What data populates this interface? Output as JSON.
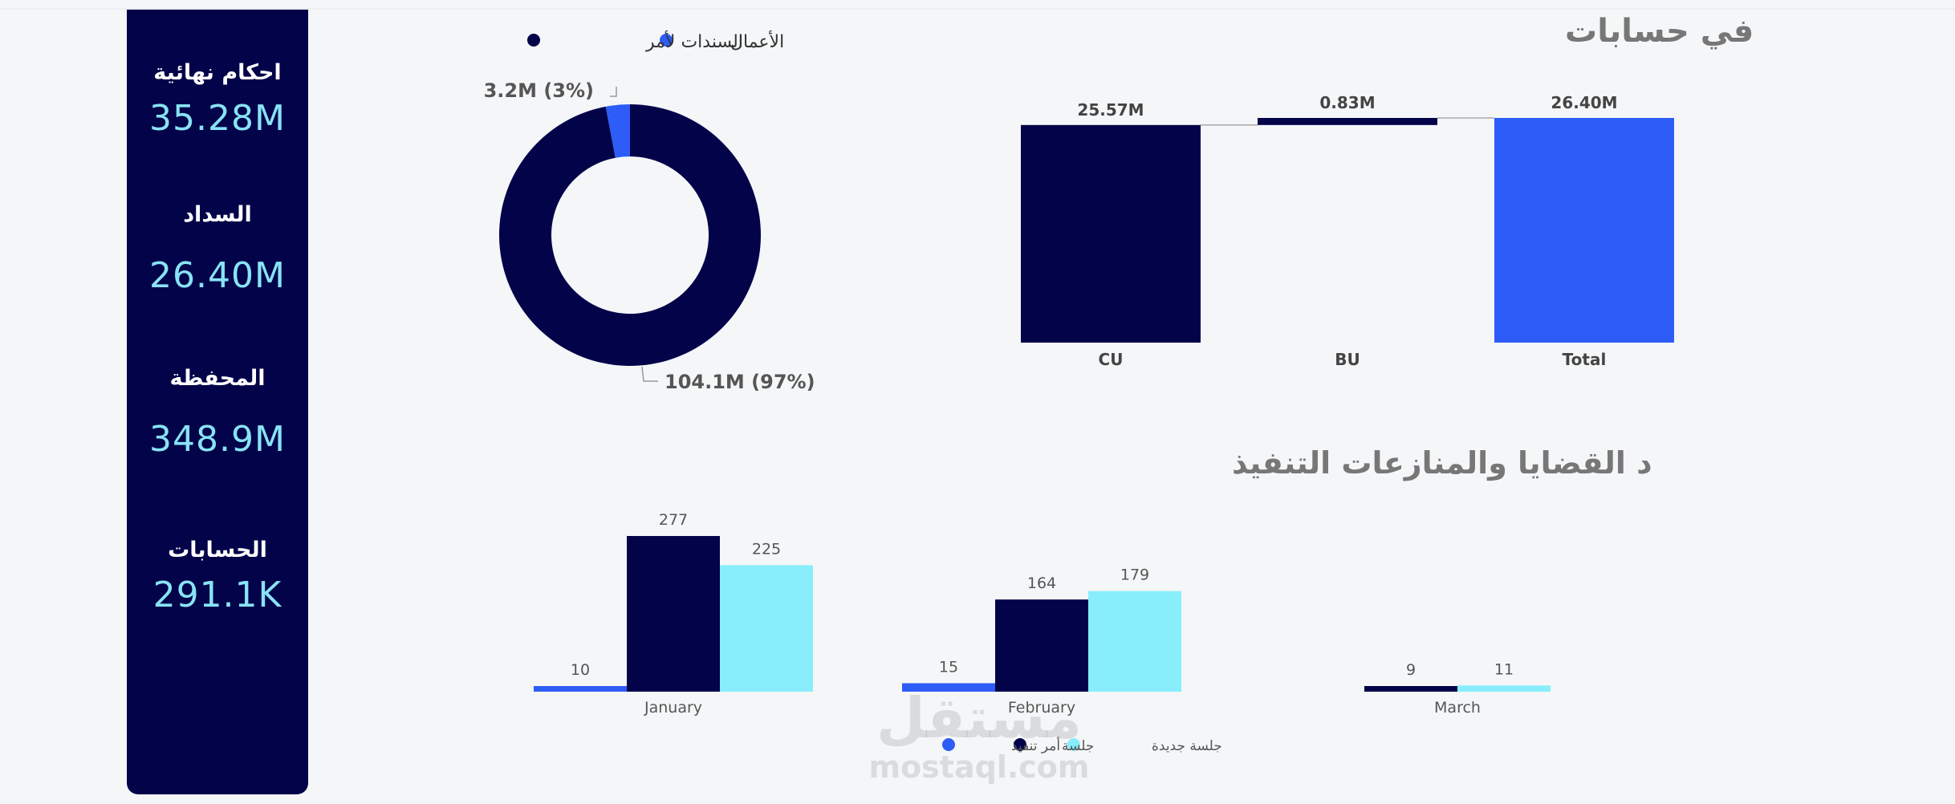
{
  "kpis": [
    {
      "label": "احكام نهائية",
      "value": "35.28M"
    },
    {
      "label": "السداد",
      "value": "26.40M"
    },
    {
      "label": "المحفظة",
      "value": "348.9M"
    },
    {
      "label": "الحسابات",
      "value": "291.1K"
    }
  ],
  "colors": {
    "navy": "#03034a",
    "blue": "#2d5cf6",
    "cyan": "#88eefb",
    "kpi_value": "#88e3f5",
    "title_gray": "#777777"
  },
  "watermark": {
    "arabic": "مستقل",
    "latin": "mostaql.com"
  },
  "chart_data": [
    {
      "type": "pie",
      "subtype": "donut",
      "legend_position": "top",
      "legend": [
        "السندات لأمر",
        "الأعمال"
      ],
      "series": [
        {
          "name": "السندات لأمر",
          "value": 104.1,
          "percent": 97,
          "label": "104.1M (97%)",
          "color": "#03034a"
        },
        {
          "name": "الأعمال",
          "value": 3.2,
          "percent": 3,
          "label": "3.2M (3%)",
          "color": "#2d5cf6"
        }
      ]
    },
    {
      "type": "bar",
      "subtype": "waterfall",
      "title": "إجمالي الايداعات في حسابات",
      "categories": [
        "CU",
        "BU",
        "Total"
      ],
      "values": [
        25.57,
        0.83,
        26.4
      ],
      "data_labels": [
        "25.57M",
        "0.83M",
        "26.40M"
      ],
      "colors": [
        "#03034a",
        "#03034a",
        "#2d5cf6"
      ],
      "grid": false
    },
    {
      "type": "bar",
      "subtype": "clustered",
      "title": "عدد القضايا والمنازعات التنفيذ",
      "categories": [
        "January",
        "February",
        "March"
      ],
      "series": [
        {
          "name": "أمر تنفيذ",
          "values": [
            10,
            15,
            null
          ],
          "color": "#2d5cf6"
        },
        {
          "name": "جلسة",
          "values": [
            277,
            164,
            9
          ],
          "color": "#03034a"
        },
        {
          "name": "جلسة جديدة",
          "values": [
            225,
            179,
            11
          ],
          "color": "#88eefb"
        }
      ],
      "legend_position": "bottom",
      "grid": false
    }
  ]
}
